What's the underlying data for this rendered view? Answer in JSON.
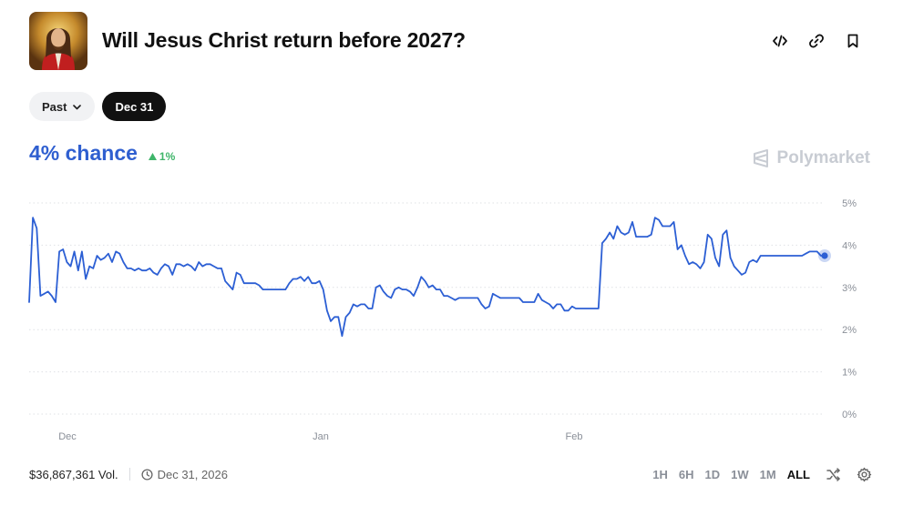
{
  "market": {
    "title": "Will Jesus Christ return before 2027?",
    "thumbnail": "jesus-portrait"
  },
  "header_icons": [
    "embed-code-icon",
    "link-icon",
    "bookmark-icon"
  ],
  "filters": {
    "past_label": "Past",
    "date_label": "Dec 31"
  },
  "summary": {
    "chance_text": "4% chance",
    "delta_text": "1%",
    "delta_direction": "up"
  },
  "brand": "Polymarket",
  "colors": {
    "accent": "#2f5fd0",
    "positive": "#3fb56a",
    "line": "#2c5fd4"
  },
  "chart_data": {
    "type": "line",
    "x_ticks": [
      "Dec",
      "Jan",
      "Feb"
    ],
    "y_ticks": [
      "5%",
      "4%",
      "3%",
      "2%",
      "1%",
      "0%"
    ],
    "ylim": [
      0,
      5
    ],
    "grid": true,
    "series": [
      {
        "values": [
          2.65,
          4.65,
          4.4,
          2.8,
          2.85,
          2.9,
          2.8,
          2.65,
          3.85,
          3.9,
          3.6,
          3.5,
          3.85,
          3.4,
          3.85,
          3.2,
          3.5,
          3.45,
          3.75,
          3.65,
          3.7,
          3.8,
          3.6,
          3.85,
          3.8,
          3.6,
          3.45,
          3.45,
          3.4,
          3.45,
          3.4,
          3.4,
          3.45,
          3.35,
          3.3,
          3.45,
          3.55,
          3.5,
          3.3,
          3.55,
          3.55,
          3.5,
          3.55,
          3.5,
          3.4,
          3.6,
          3.5,
          3.55,
          3.55,
          3.5,
          3.45,
          3.45,
          3.15,
          3.05,
          2.95,
          3.35,
          3.3,
          3.1,
          3.1,
          3.1,
          3.1,
          3.05,
          2.95,
          2.95,
          2.95,
          2.95,
          2.95,
          2.95,
          2.95,
          3.1,
          3.2,
          3.2,
          3.25,
          3.15,
          3.25,
          3.1,
          3.1,
          3.15,
          2.95,
          2.45,
          2.2,
          2.3,
          2.3,
          1.85,
          2.3,
          2.4,
          2.6,
          2.55,
          2.6,
          2.6,
          2.5,
          2.5,
          3,
          3.05,
          2.9,
          2.8,
          2.75,
          2.95,
          3,
          2.95,
          2.95,
          2.9,
          2.8,
          3,
          3.25,
          3.15,
          3,
          3.05,
          2.95,
          2.95,
          2.8,
          2.8,
          2.75,
          2.7,
          2.75,
          2.75,
          2.75,
          2.75,
          2.75,
          2.75,
          2.6,
          2.5,
          2.55,
          2.85,
          2.8,
          2.75,
          2.75,
          2.75,
          2.75,
          2.75,
          2.75,
          2.65,
          2.65,
          2.65,
          2.65,
          2.85,
          2.7,
          2.65,
          2.6,
          2.5,
          2.6,
          2.6,
          2.45,
          2.45,
          2.55,
          2.5,
          2.5,
          2.5,
          2.5,
          2.5,
          2.5,
          2.5,
          4.05,
          4.15,
          4.3,
          4.15,
          4.45,
          4.3,
          4.25,
          4.3,
          4.55,
          4.2,
          4.2,
          4.2,
          4.2,
          4.25,
          4.65,
          4.6,
          4.45,
          4.45,
          4.45,
          4.55,
          3.9,
          4,
          3.75,
          3.55,
          3.6,
          3.55,
          3.45,
          3.6,
          4.25,
          4.15,
          3.7,
          3.5,
          4.25,
          4.35,
          3.7,
          3.5,
          3.4,
          3.3,
          3.35,
          3.6,
          3.65,
          3.6,
          3.75,
          3.75,
          3.75,
          3.75,
          3.75,
          3.75,
          3.75,
          3.75,
          3.75,
          3.75,
          3.75,
          3.75,
          3.8,
          3.85,
          3.85,
          3.85,
          3.75,
          3.75
        ],
        "last_value": 3.75
      }
    ]
  },
  "footer": {
    "volume_text": "$36,867,361 Vol.",
    "end_date_text": "Dec 31, 2026",
    "ranges": [
      "1H",
      "6H",
      "1D",
      "1W",
      "1M",
      "ALL"
    ],
    "active_range": "ALL"
  }
}
